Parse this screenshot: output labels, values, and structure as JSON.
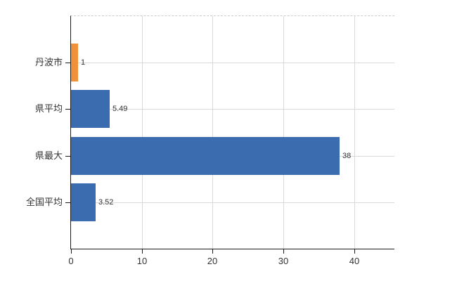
{
  "chart_data": {
    "type": "bar",
    "orientation": "horizontal",
    "title": "",
    "xlabel": "",
    "ylabel": "",
    "categories": [
      "丹波市",
      "県平均",
      "県最大",
      "全国平均"
    ],
    "values": [
      1,
      5.49,
      38,
      3.52
    ],
    "value_labels": [
      "1",
      "5.49",
      "38",
      "3.52"
    ],
    "bar_colors": [
      "#f0923a",
      "#3c6cb0",
      "#3c6cb0",
      "#3c6cb0"
    ],
    "x_ticks": [
      0,
      10,
      20,
      30,
      40
    ],
    "x_tick_labels": [
      "0",
      "10",
      "20",
      "30",
      "40"
    ],
    "xlim": [
      0,
      45.7
    ],
    "grid": true,
    "legend": "none",
    "background_color": "#ffffff",
    "axis_color": "#1a1a1a",
    "gridline_color": "#d9d9d9",
    "text_color": "#333333"
  }
}
